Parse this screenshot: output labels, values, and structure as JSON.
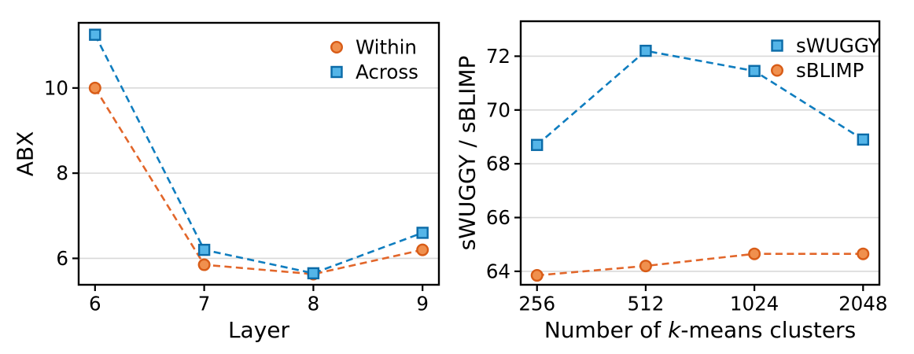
{
  "figure": {
    "background": "#ffffff",
    "style": {
      "grid_color": "#d9d9d9",
      "spine_color": "#000000",
      "text_color": "#000000"
    }
  },
  "chart_data": [
    {
      "type": "line",
      "title": "",
      "xlabel": "Layer",
      "xlabel_parts": [
        {
          "text": "Layer",
          "italic": false
        }
      ],
      "ylabel": "ABX",
      "x": [
        6,
        7,
        8,
        9
      ],
      "xtick_labels": [
        "6",
        "7",
        "8",
        "9"
      ],
      "xlim": [
        5.85,
        9.15
      ],
      "ylim": [
        5.38,
        11.53
      ],
      "yticks": [
        6,
        8,
        10
      ],
      "grid": "horizontal",
      "line_style": "dashed",
      "legend_position": "upper-right",
      "series": [
        {
          "name": "Within",
          "marker": "circle",
          "values": [
            10.0,
            5.85,
            5.63,
            6.2
          ],
          "line_color": "#e2662a",
          "marker_face": "#f0904e",
          "marker_edge": "#d85c17"
        },
        {
          "name": "Across",
          "marker": "square",
          "values": [
            11.25,
            6.2,
            5.65,
            6.6
          ],
          "line_color": "#0f7dbf",
          "marker_face": "#54b5e8",
          "marker_edge": "#0b6ba8"
        }
      ]
    },
    {
      "type": "line",
      "title": "",
      "xlabel": "Number of k-means clusters",
      "xlabel_parts": [
        {
          "text": "Number of ",
          "italic": false
        },
        {
          "text": "k",
          "italic": true
        },
        {
          "text": "-means clusters",
          "italic": false
        }
      ],
      "ylabel": "sWUGGY / sBLIMP",
      "x": [
        0,
        1,
        2,
        3
      ],
      "xtick_labels": [
        "256",
        "512",
        "1024",
        "2048"
      ],
      "xlim": [
        -0.15,
        3.15
      ],
      "ylim": [
        63.5,
        73.3
      ],
      "yticks": [
        64,
        66,
        68,
        70,
        72
      ],
      "grid": "horizontal",
      "line_style": "dashed",
      "legend_position": "upper-right",
      "series": [
        {
          "name": "sWUGGY",
          "marker": "square",
          "values": [
            68.7,
            72.2,
            71.45,
            68.9
          ],
          "line_color": "#0f7dbf",
          "marker_face": "#54b5e8",
          "marker_edge": "#0b6ba8"
        },
        {
          "name": "sBLIMP",
          "marker": "circle",
          "values": [
            63.85,
            64.2,
            64.65,
            64.65
          ],
          "line_color": "#e2662a",
          "marker_face": "#f0904e",
          "marker_edge": "#d85c17"
        }
      ]
    }
  ]
}
